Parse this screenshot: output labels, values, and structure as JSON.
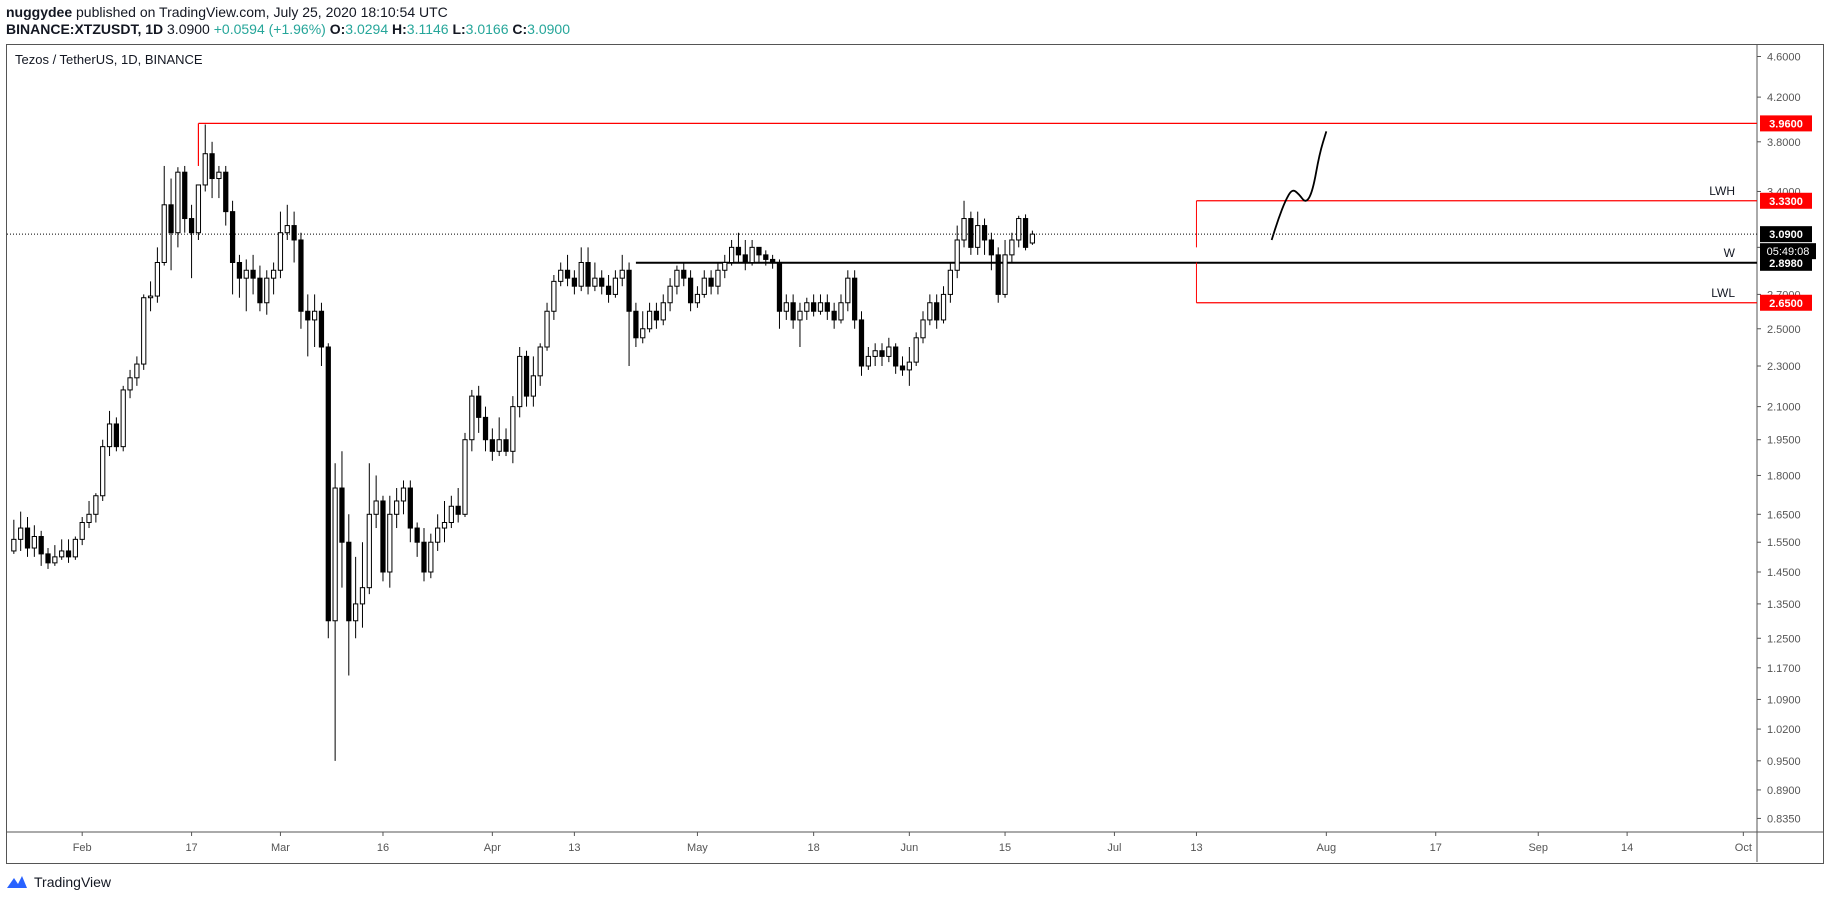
{
  "header": {
    "publisher": "nuggydee",
    "published_text": "published on TradingView.com, July 25, 2020 18:10:54 UTC",
    "symbol": "BINANCE:XTZUSDT, 1D",
    "last": "3.0900",
    "change": "+0.0594 (+1.96%)",
    "o_label": "O:",
    "o": "3.0294",
    "h_label": "H:",
    "h": "3.1146",
    "l_label": "L:",
    "l": "3.0166",
    "c_label": "C:",
    "c": "3.0900"
  },
  "footer": {
    "brand": "TradingView",
    "logo_icon": "tradingview-logo-icon"
  },
  "colors": {
    "up_body": "#ffffff",
    "down_body": "#000000",
    "wick": "#000000",
    "red_line": "#ff0000",
    "black_line": "#000000",
    "red_label": "#ff0000"
  },
  "chart_data": {
    "type": "candlestick",
    "title": "Tezos / TetherUS, 1D, BINANCE",
    "y_scale": "log",
    "ylim": [
      0.81,
      4.72
    ],
    "y_ticks": [
      "4.6000",
      "4.2000",
      "3.8000",
      "3.4000",
      "3.0000",
      "2.7000",
      "2.5000",
      "2.3000",
      "2.1000",
      "1.9500",
      "1.8000",
      "1.6500",
      "1.5500",
      "1.4500",
      "1.3500",
      "1.2500",
      "1.1700",
      "1.0900",
      "1.0200",
      "0.9500",
      "0.8900",
      "0.8350"
    ],
    "y_tick_values": [
      4.6,
      4.2,
      3.8,
      3.4,
      3.0,
      2.7,
      2.5,
      2.3,
      2.1,
      1.95,
      1.8,
      1.65,
      1.55,
      1.45,
      1.35,
      1.25,
      1.17,
      1.09,
      1.02,
      0.95,
      0.89,
      0.835
    ],
    "x_ticks": [
      {
        "label": "Feb",
        "day": 31
      },
      {
        "label": "17",
        "day": 47
      },
      {
        "label": "Mar",
        "day": 60
      },
      {
        "label": "16",
        "day": 75
      },
      {
        "label": "Apr",
        "day": 91
      },
      {
        "label": "13",
        "day": 103
      },
      {
        "label": "May",
        "day": 121
      },
      {
        "label": "18",
        "day": 138
      },
      {
        "label": "Jun",
        "day": 152
      },
      {
        "label": "15",
        "day": 166
      },
      {
        "label": "Jul",
        "day": 182
      },
      {
        "label": "13",
        "day": 194
      },
      {
        "label": "Aug",
        "day": 213
      },
      {
        "label": "17",
        "day": 229
      },
      {
        "label": "Sep",
        "day": 244
      },
      {
        "label": "14",
        "day": 257
      },
      {
        "label": "Oct",
        "day": 274
      }
    ],
    "xlim_day": [
      20,
      276
    ],
    "candles": [
      [
        1.52,
        1.56,
        1.63,
        1.51
      ],
      [
        1.56,
        1.6,
        1.66,
        1.52
      ],
      [
        1.6,
        1.53,
        1.64,
        1.5
      ],
      [
        1.53,
        1.57,
        1.61,
        1.5
      ],
      [
        1.57,
        1.51,
        1.59,
        1.47
      ],
      [
        1.51,
        1.48,
        1.53,
        1.46
      ],
      [
        1.48,
        1.5,
        1.54,
        1.47
      ],
      [
        1.5,
        1.52,
        1.56,
        1.49
      ],
      [
        1.52,
        1.5,
        1.56,
        1.48
      ],
      [
        1.5,
        1.56,
        1.57,
        1.49
      ],
      [
        1.56,
        1.62,
        1.64,
        1.54
      ],
      [
        1.62,
        1.65,
        1.7,
        1.6
      ],
      [
        1.65,
        1.72,
        1.73,
        1.62
      ],
      [
        1.72,
        1.92,
        1.95,
        1.7
      ],
      [
        1.92,
        2.02,
        2.08,
        1.88
      ],
      [
        2.02,
        1.92,
        2.05,
        1.9
      ],
      [
        1.92,
        2.18,
        2.2,
        1.9
      ],
      [
        2.18,
        2.24,
        2.28,
        2.14
      ],
      [
        2.24,
        2.31,
        2.35,
        2.2
      ],
      [
        2.31,
        2.68,
        2.7,
        2.28
      ],
      [
        2.68,
        2.69,
        2.78,
        2.6
      ],
      [
        2.69,
        2.9,
        3.0,
        2.65
      ],
      [
        2.9,
        3.3,
        3.6,
        2.88
      ],
      [
        3.3,
        3.1,
        3.5,
        2.85
      ],
      [
        3.1,
        3.55,
        3.59,
        3.0
      ],
      [
        3.55,
        3.2,
        3.6,
        3.1
      ],
      [
        3.2,
        3.1,
        3.3,
        2.8
      ],
      [
        3.1,
        3.45,
        3.45,
        3.05
      ],
      [
        3.45,
        3.7,
        3.95,
        3.4
      ],
      [
        3.7,
        3.5,
        3.8,
        3.35
      ],
      [
        3.5,
        3.55,
        3.6,
        3.35
      ],
      [
        3.55,
        3.25,
        3.6,
        3.15
      ],
      [
        3.25,
        2.9,
        3.33,
        2.7
      ],
      [
        2.9,
        2.8,
        2.95,
        2.68
      ],
      [
        2.8,
        2.85,
        2.92,
        2.6
      ],
      [
        2.85,
        2.8,
        2.95,
        2.7
      ],
      [
        2.8,
        2.65,
        2.88,
        2.6
      ],
      [
        2.65,
        2.8,
        2.85,
        2.58
      ],
      [
        2.8,
        2.85,
        2.9,
        2.7
      ],
      [
        2.85,
        3.1,
        3.25,
        2.8
      ],
      [
        3.1,
        3.15,
        3.3,
        3.05
      ],
      [
        3.15,
        3.05,
        3.25,
        2.9
      ],
      [
        3.05,
        2.6,
        3.1,
        2.5
      ],
      [
        2.6,
        2.55,
        2.7,
        2.35
      ],
      [
        2.55,
        2.6,
        2.7,
        2.4
      ],
      [
        2.6,
        2.4,
        2.65,
        2.3
      ],
      [
        2.4,
        1.3,
        2.42,
        1.25
      ],
      [
        1.3,
        1.75,
        1.85,
        0.95
      ],
      [
        1.75,
        1.55,
        1.9,
        1.4
      ],
      [
        1.55,
        1.3,
        1.65,
        1.15
      ],
      [
        1.3,
        1.35,
        1.5,
        1.25
      ],
      [
        1.35,
        1.4,
        1.55,
        1.28
      ],
      [
        1.4,
        1.65,
        1.85,
        1.38
      ],
      [
        1.65,
        1.7,
        1.8,
        1.6
      ],
      [
        1.7,
        1.45,
        1.72,
        1.42
      ],
      [
        1.45,
        1.65,
        1.72,
        1.4
      ],
      [
        1.65,
        1.7,
        1.75,
        1.6
      ],
      [
        1.7,
        1.75,
        1.78,
        1.65
      ],
      [
        1.75,
        1.6,
        1.78,
        1.55
      ],
      [
        1.6,
        1.55,
        1.62,
        1.5
      ],
      [
        1.55,
        1.45,
        1.6,
        1.42
      ],
      [
        1.45,
        1.55,
        1.58,
        1.43
      ],
      [
        1.55,
        1.6,
        1.65,
        1.52
      ],
      [
        1.6,
        1.62,
        1.7,
        1.55
      ],
      [
        1.62,
        1.68,
        1.72,
        1.6
      ],
      [
        1.68,
        1.65,
        1.75,
        1.62
      ],
      [
        1.65,
        1.95,
        1.98,
        1.64
      ],
      [
        1.95,
        2.15,
        2.18,
        1.9
      ],
      [
        2.15,
        2.05,
        2.2,
        1.98
      ],
      [
        2.05,
        1.95,
        2.1,
        1.9
      ],
      [
        1.95,
        1.9,
        2.0,
        1.86
      ],
      [
        1.9,
        1.95,
        2.05,
        1.88
      ],
      [
        1.95,
        1.9,
        2.0,
        1.88
      ],
      [
        1.9,
        2.1,
        2.15,
        1.85
      ],
      [
        2.1,
        2.35,
        2.4,
        2.05
      ],
      [
        2.35,
        2.15,
        2.38,
        2.1
      ],
      [
        2.15,
        2.25,
        2.35,
        2.1
      ],
      [
        2.25,
        2.4,
        2.42,
        2.2
      ],
      [
        2.4,
        2.6,
        2.65,
        2.38
      ],
      [
        2.6,
        2.78,
        2.82,
        2.55
      ],
      [
        2.78,
        2.85,
        2.9,
        2.75
      ],
      [
        2.85,
        2.8,
        2.95,
        2.75
      ],
      [
        2.8,
        2.75,
        2.85,
        2.7
      ],
      [
        2.75,
        2.9,
        3.0,
        2.72
      ],
      [
        2.9,
        2.75,
        3.0,
        2.7
      ],
      [
        2.75,
        2.8,
        2.9,
        2.72
      ],
      [
        2.8,
        2.75,
        2.85,
        2.7
      ],
      [
        2.75,
        2.7,
        2.82,
        2.65
      ],
      [
        2.7,
        2.8,
        2.85,
        2.68
      ],
      [
        2.8,
        2.85,
        2.95,
        2.75
      ],
      [
        2.85,
        2.6,
        2.9,
        2.3
      ],
      [
        2.6,
        2.45,
        2.65,
        2.4
      ],
      [
        2.45,
        2.5,
        2.6,
        2.42
      ],
      [
        2.5,
        2.6,
        2.65,
        2.48
      ],
      [
        2.6,
        2.55,
        2.65,
        2.5
      ],
      [
        2.55,
        2.65,
        2.7,
        2.52
      ],
      [
        2.65,
        2.75,
        2.8,
        2.6
      ],
      [
        2.75,
        2.85,
        2.88,
        2.7
      ],
      [
        2.85,
        2.8,
        2.9,
        2.75
      ],
      [
        2.8,
        2.65,
        2.85,
        2.6
      ],
      [
        2.65,
        2.7,
        2.75,
        2.62
      ],
      [
        2.7,
        2.8,
        2.85,
        2.68
      ],
      [
        2.8,
        2.75,
        2.85,
        2.7
      ],
      [
        2.75,
        2.85,
        2.9,
        2.7
      ],
      [
        2.85,
        2.9,
        2.95,
        2.8
      ],
      [
        2.9,
        3.0,
        3.05,
        2.88
      ],
      [
        3.0,
        2.95,
        3.1,
        2.9
      ],
      [
        2.95,
        2.9,
        3.05,
        2.85
      ],
      [
        2.9,
        3.0,
        3.05,
        2.88
      ],
      [
        3.0,
        2.95,
        3.0,
        2.9
      ],
      [
        2.95,
        2.92,
        2.98,
        2.88
      ],
      [
        2.92,
        2.9,
        2.95,
        2.86
      ],
      [
        2.9,
        2.6,
        2.92,
        2.5
      ],
      [
        2.6,
        2.65,
        2.7,
        2.55
      ],
      [
        2.65,
        2.55,
        2.7,
        2.5
      ],
      [
        2.55,
        2.6,
        2.65,
        2.4
      ],
      [
        2.6,
        2.65,
        2.68,
        2.55
      ],
      [
        2.65,
        2.6,
        2.7,
        2.57
      ],
      [
        2.6,
        2.65,
        2.7,
        2.58
      ],
      [
        2.65,
        2.6,
        2.7,
        2.55
      ],
      [
        2.6,
        2.55,
        2.65,
        2.5
      ],
      [
        2.55,
        2.65,
        2.7,
        2.53
      ],
      [
        2.65,
        2.8,
        2.85,
        2.6
      ],
      [
        2.8,
        2.55,
        2.85,
        2.5
      ],
      [
        2.55,
        2.3,
        2.6,
        2.25
      ],
      [
        2.3,
        2.35,
        2.4,
        2.28
      ],
      [
        2.35,
        2.38,
        2.42,
        2.3
      ],
      [
        2.38,
        2.35,
        2.42,
        2.3
      ],
      [
        2.35,
        2.4,
        2.45,
        2.32
      ],
      [
        2.4,
        2.3,
        2.42,
        2.26
      ],
      [
        2.3,
        2.28,
        2.35,
        2.25
      ],
      [
        2.28,
        2.32,
        2.4,
        2.2
      ],
      [
        2.32,
        2.45,
        2.48,
        2.3
      ],
      [
        2.45,
        2.55,
        2.6,
        2.42
      ],
      [
        2.55,
        2.65,
        2.7,
        2.52
      ],
      [
        2.65,
        2.55,
        2.7,
        2.5
      ],
      [
        2.55,
        2.7,
        2.75,
        2.53
      ],
      [
        2.7,
        2.85,
        2.9,
        2.65
      ],
      [
        2.85,
        3.05,
        3.15,
        2.8
      ],
      [
        3.05,
        3.2,
        3.33,
        3.0
      ],
      [
        3.2,
        3.0,
        3.25,
        2.95
      ],
      [
        3.0,
        3.15,
        3.25,
        2.95
      ],
      [
        3.15,
        3.05,
        3.2,
        2.95
      ],
      [
        3.05,
        2.95,
        3.1,
        2.85
      ],
      [
        2.95,
        2.7,
        3.0,
        2.65
      ],
      [
        2.7,
        2.95,
        3.05,
        2.68
      ],
      [
        2.95,
        3.05,
        3.1,
        2.9
      ],
      [
        3.05,
        3.2,
        3.22,
        3.0
      ],
      [
        3.2,
        3.0,
        3.23,
        2.98
      ],
      [
        3.0294,
        3.09,
        3.1146,
        3.0166
      ]
    ],
    "first_candle_day": 21,
    "levels": [
      {
        "name": "top",
        "price": 3.96,
        "label": "3.9600",
        "line_color": "#ff0000",
        "label_bg": "#ff0000",
        "start_day": 48,
        "text": ""
      },
      {
        "name": "lwh",
        "price": 3.33,
        "label": "3.3300",
        "line_color": "#ff0000",
        "label_bg": "#ff0000",
        "start_day": 194,
        "text": "LWH"
      },
      {
        "name": "w",
        "price": 2.898,
        "label": "2.8980",
        "line_color": "#000000",
        "label_bg": "#000000",
        "start_day": 112,
        "text": "W"
      },
      {
        "name": "lwl",
        "price": 2.65,
        "label": "2.6500",
        "line_color": "#ff0000",
        "label_bg": "#ff0000",
        "start_day": 194,
        "text": "LWL"
      }
    ],
    "last_price": {
      "price": 3.09,
      "label": "3.0900",
      "countdown": "05:49:08"
    },
    "projection_path": [
      [
        205,
        3.05
      ],
      [
        206,
        3.2
      ],
      [
        207,
        3.33
      ],
      [
        208,
        3.42
      ],
      [
        209,
        3.38
      ],
      [
        210,
        3.31
      ],
      [
        211,
        3.4
      ],
      [
        212,
        3.7
      ],
      [
        213,
        3.89
      ]
    ]
  }
}
